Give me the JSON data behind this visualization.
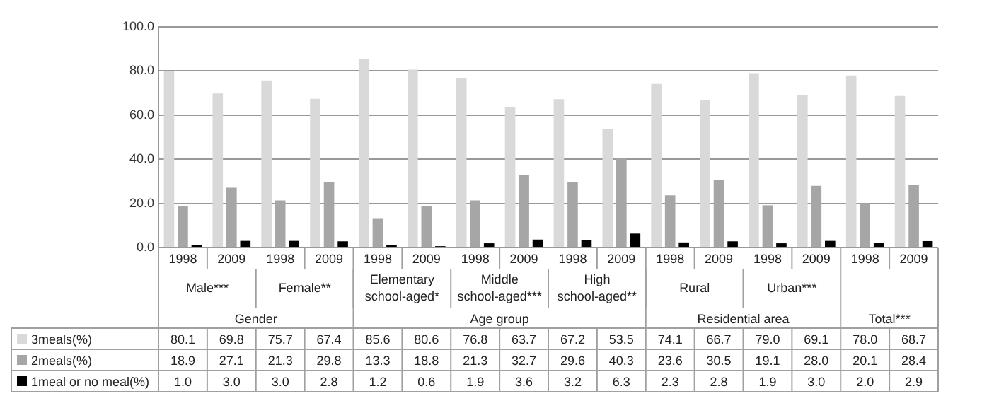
{
  "chart_data": {
    "type": "bar",
    "categories": [
      "1998",
      "2009",
      "1998",
      "2009",
      "1998",
      "2009",
      "1998",
      "2009",
      "1998",
      "2009",
      "1998",
      "2009",
      "1998",
      "2009",
      "1998",
      "2009"
    ],
    "series": [
      {
        "name": "3meals(%)",
        "color": "#d9d9d9",
        "values": [
          80.1,
          69.8,
          75.7,
          67.4,
          85.6,
          80.6,
          76.8,
          63.7,
          67.2,
          53.5,
          74.1,
          66.7,
          79.0,
          69.1,
          78.0,
          68.7
        ],
        "value_labels": [
          "80.1",
          "69.8",
          "75.7",
          "67.4",
          "85.6",
          "80.6",
          "76.8",
          "63.7",
          "67.2",
          "53.5",
          "74.1",
          "66.7",
          "79.0",
          "69.1",
          "78.0",
          "68.7"
        ]
      },
      {
        "name": "2meals(%)",
        "color": "#a6a6a6",
        "values": [
          18.9,
          27.1,
          21.3,
          29.8,
          13.3,
          18.8,
          21.3,
          32.7,
          29.6,
          40.3,
          23.6,
          30.5,
          19.1,
          28.0,
          20.1,
          28.4
        ],
        "value_labels": [
          "18.9",
          "27.1",
          "21.3",
          "29.8",
          "13.3",
          "18.8",
          "21.3",
          "32.7",
          "29.6",
          "40.3",
          "23.6",
          "30.5",
          "19.1",
          "28.0",
          "20.1",
          "28.4"
        ]
      },
      {
        "name": "1meal or no meal(%)",
        "color": "#000000",
        "values": [
          1.0,
          3.0,
          3.0,
          2.8,
          1.2,
          0.6,
          1.9,
          3.6,
          3.2,
          6.3,
          2.3,
          2.8,
          1.9,
          3.0,
          2.0,
          2.9
        ],
        "value_labels": [
          "1.0",
          "3.0",
          "3.0",
          "2.8",
          "1.2",
          "0.6",
          "1.9",
          "3.6",
          "3.2",
          "6.3",
          "2.3",
          "2.8",
          "1.9",
          "3.0",
          "2.0",
          "2.9"
        ]
      }
    ],
    "ylim": [
      0,
      100
    ],
    "yticks": [
      {
        "value": 0,
        "label": "0.0"
      },
      {
        "value": 20,
        "label": "20.0"
      },
      {
        "value": 40,
        "label": "40.0"
      },
      {
        "value": 60,
        "label": "60.0"
      },
      {
        "value": 80,
        "label": "80.0"
      },
      {
        "value": 100,
        "label": "100.0"
      }
    ],
    "grid": "y",
    "legend": "bottom",
    "annotations": [
      "Male***",
      "Female**",
      "Elementary school-aged*",
      "Middle school-aged***",
      "High school-aged**",
      "Rural",
      "Urban***",
      "Gender",
      "Age group",
      "Residential area",
      "Total***"
    ]
  }
}
